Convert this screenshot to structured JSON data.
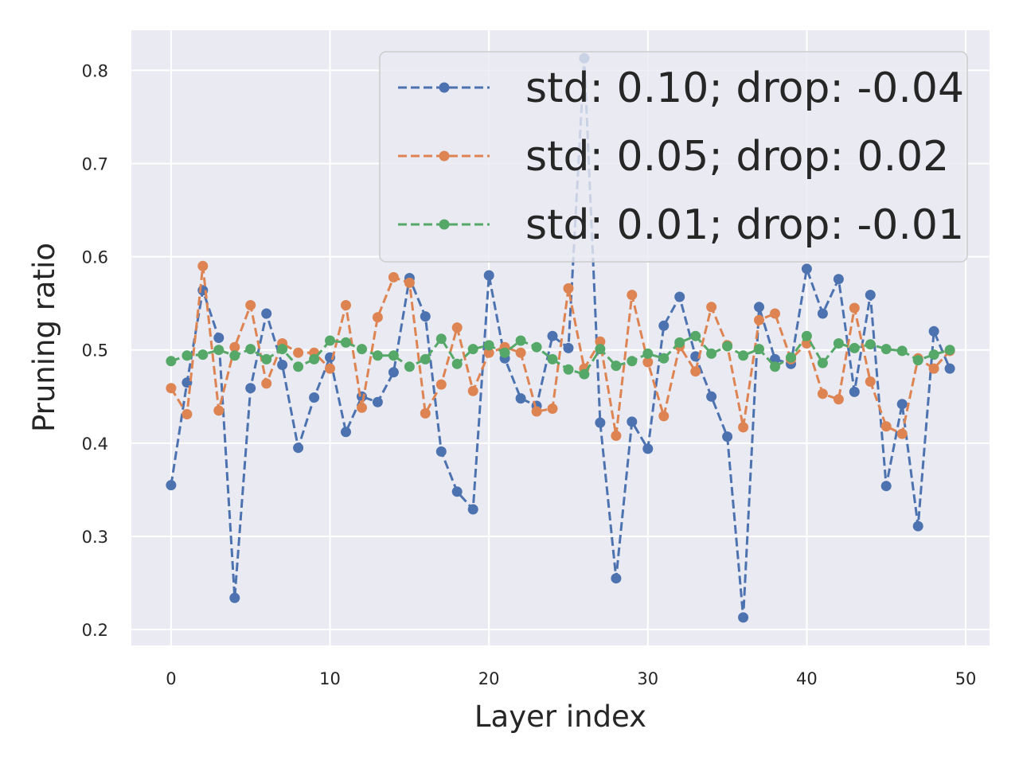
{
  "chart_data": {
    "type": "line",
    "title": "",
    "xlabel": "Layer index",
    "ylabel": "Pruning ratio",
    "xlim": [
      -2.5,
      51.5
    ],
    "ylim": [
      0.183,
      0.843
    ],
    "xticks": [
      0,
      10,
      20,
      30,
      40,
      50
    ],
    "xtick_labels": [
      "0",
      "10",
      "20",
      "30",
      "40",
      "50"
    ],
    "yticks": [
      0.2,
      0.3,
      0.4,
      0.5,
      0.6,
      0.7,
      0.8
    ],
    "ytick_labels": [
      "0.2",
      "0.3",
      "0.4",
      "0.5",
      "0.6",
      "0.7",
      "0.8"
    ],
    "grid": true,
    "legend_position": "top-right",
    "x": [
      0,
      1,
      2,
      3,
      4,
      5,
      6,
      7,
      8,
      9,
      10,
      11,
      12,
      13,
      14,
      15,
      16,
      17,
      18,
      19,
      20,
      21,
      22,
      23,
      24,
      25,
      26,
      27,
      28,
      29,
      30,
      31,
      32,
      33,
      34,
      35,
      36,
      37,
      38,
      39,
      40,
      41,
      42,
      43,
      44,
      45,
      46,
      47,
      48,
      49
    ],
    "series": [
      {
        "name": "std: 0.10; drop: -0.04",
        "color": "#4c72b0",
        "line_style": "dashed",
        "marker": "circle",
        "values": [
          0.355,
          0.465,
          0.564,
          0.513,
          0.234,
          0.459,
          0.539,
          0.484,
          0.395,
          0.449,
          0.492,
          0.412,
          0.45,
          0.444,
          0.476,
          0.577,
          0.536,
          0.391,
          0.348,
          0.329,
          0.58,
          0.491,
          0.448,
          0.44,
          0.515,
          0.502,
          0.813,
          0.422,
          0.255,
          0.423,
          0.394,
          0.526,
          0.557,
          0.493,
          0.45,
          0.407,
          0.213,
          0.546,
          0.49,
          0.485,
          0.587,
          0.539,
          0.576,
          0.455,
          0.559,
          0.354,
          0.442,
          0.311,
          0.52,
          0.48
        ]
      },
      {
        "name": "std: 0.05; drop: 0.02",
        "color": "#dd8452",
        "line_style": "dashed",
        "marker": "circle",
        "values": [
          0.459,
          0.431,
          0.59,
          0.435,
          0.503,
          0.548,
          0.464,
          0.507,
          0.497,
          0.497,
          0.48,
          0.548,
          0.438,
          0.535,
          0.578,
          0.572,
          0.432,
          0.463,
          0.524,
          0.456,
          0.497,
          0.503,
          0.497,
          0.434,
          0.437,
          0.566,
          0.48,
          0.509,
          0.408,
          0.559,
          0.487,
          0.429,
          0.504,
          0.477,
          0.546,
          0.505,
          0.417,
          0.532,
          0.539,
          0.49,
          0.507,
          0.453,
          0.447,
          0.545,
          0.466,
          0.418,
          0.41,
          0.491,
          0.48,
          0.499
        ]
      },
      {
        "name": "std: 0.01; drop: -0.01",
        "color": "#55a868",
        "line_style": "dashed",
        "marker": "circle",
        "values": [
          0.488,
          0.494,
          0.495,
          0.5,
          0.494,
          0.501,
          0.49,
          0.501,
          0.482,
          0.49,
          0.51,
          0.508,
          0.501,
          0.494,
          0.494,
          0.482,
          0.49,
          0.512,
          0.485,
          0.501,
          0.505,
          0.497,
          0.51,
          0.503,
          0.49,
          0.479,
          0.474,
          0.501,
          0.483,
          0.488,
          0.496,
          0.491,
          0.508,
          0.515,
          0.496,
          0.504,
          0.494,
          0.501,
          0.482,
          0.492,
          0.515,
          0.486,
          0.507,
          0.502,
          0.506,
          0.501,
          0.499,
          0.489,
          0.495,
          0.5
        ]
      }
    ]
  }
}
